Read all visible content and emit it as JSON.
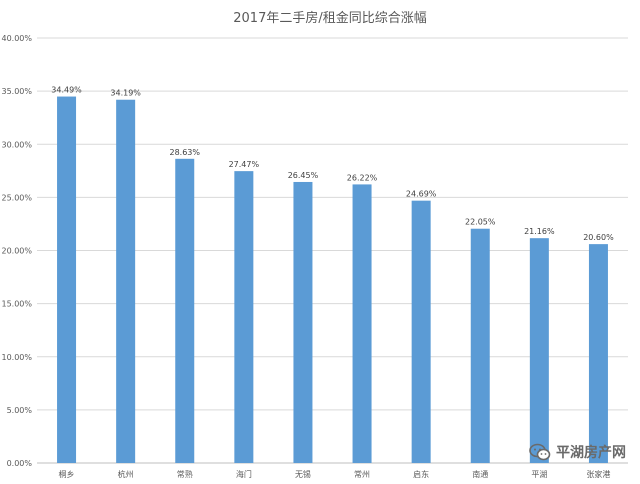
{
  "chart_data": {
    "type": "bar",
    "title": "2017年二手房/租金同比综合涨幅",
    "categories": [
      "桐乡",
      "杭州",
      "常熟",
      "海门",
      "无锡",
      "常州",
      "启东",
      "南通",
      "平湖",
      "张家港"
    ],
    "values": [
      34.49,
      34.19,
      28.63,
      27.47,
      26.45,
      26.22,
      24.69,
      22.05,
      21.16,
      20.6
    ],
    "data_labels": [
      "34.49%",
      "34.19%",
      "28.63%",
      "27.47%",
      "26.45%",
      "26.22%",
      "24.69%",
      "22.05%",
      "21.16%",
      "20.60%"
    ],
    "yticks": [
      "0.00%",
      "5.00%",
      "10.00%",
      "15.00%",
      "20.00%",
      "25.00%",
      "30.00%",
      "35.00%",
      "40.00%"
    ],
    "ylim": [
      0,
      40
    ],
    "grid": true,
    "bar_color": "#5b9bd5"
  },
  "watermark": {
    "icon": "wechat-icon",
    "text": "平湖房产网"
  }
}
